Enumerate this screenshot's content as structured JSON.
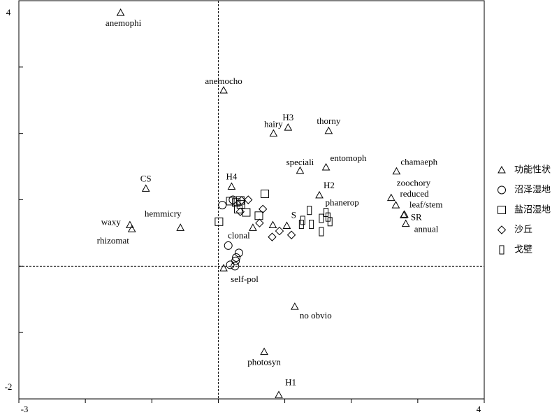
{
  "chart_data": {
    "type": "scatter",
    "xlim": [
      -3,
      4
    ],
    "ylim": [
      -2,
      4
    ],
    "xticks": [
      -3,
      -2,
      -1,
      0,
      1,
      2,
      3,
      4
    ],
    "yticks": [
      -2,
      -1,
      0,
      1,
      2,
      3,
      4
    ],
    "origin_lines": true,
    "series": [
      {
        "name": "功能性状",
        "marker": "triangle",
        "color": "#000000",
        "labels": [
          "anemophi",
          "anemocho",
          "H3",
          "hairy",
          "thorny",
          "speciali",
          "entomoph",
          "chamaeph",
          "CS",
          "H4",
          "H2",
          "zoochory",
          "reduced",
          "leaf/stem",
          "SR",
          "annual",
          "waxy",
          "rhizomat",
          "hemmicry",
          "clonal",
          "S",
          "phanerop",
          "self-pol",
          "no obvio",
          "photosyn",
          "H1"
        ],
        "x": [
          -1.47,
          0.08,
          1.05,
          0.83,
          1.66,
          1.23,
          1.62,
          2.68,
          -1.09,
          0.2,
          1.52,
          2.6,
          2.67,
          2.79,
          2.8,
          2.82,
          -1.33,
          -1.3,
          -0.57,
          0.52,
          1.03,
          0.82,
          0.08,
          1.15,
          0.69,
          0.91
        ],
        "y": [
          3.82,
          2.65,
          2.09,
          2.0,
          2.04,
          1.44,
          1.49,
          1.43,
          1.17,
          1.2,
          1.07,
          1.03,
          0.92,
          0.77,
          0.78,
          0.64,
          0.62,
          0.56,
          0.58,
          0.58,
          0.61,
          0.62,
          -0.03,
          -0.61,
          -1.29,
          -1.94
        ]
      },
      {
        "name": "沼泽湿地",
        "marker": "circle",
        "color": "#000000",
        "x": [
          0.06,
          0.22,
          0.15,
          0.31,
          0.27,
          0.26,
          0.18,
          0.25
        ],
        "y": [
          0.92,
          1.0,
          0.31,
          0.2,
          0.13,
          0.08,
          0.02,
          0.0
        ]
      },
      {
        "name": "盐沼湿地",
        "marker": "square",
        "color": "#000000",
        "x": [
          0.01,
          0.18,
          0.27,
          0.34,
          0.3,
          0.42,
          0.7,
          0.61,
          0.33
        ],
        "y": [
          0.67,
          0.98,
          0.96,
          0.93,
          0.86,
          0.81,
          1.09,
          0.76,
          0.99
        ]
      },
      {
        "name": "沙丘",
        "marker": "diamond",
        "color": "#000000",
        "x": [
          0.35,
          0.45,
          0.67,
          0.62,
          0.81,
          0.92,
          1.1,
          0.33
        ],
        "y": [
          0.99,
          1.0,
          0.86,
          0.65,
          0.44,
          0.53,
          0.47,
          0.82
        ]
      },
      {
        "name": "戈壁",
        "marker": "tallrect",
        "color": "#000000",
        "x": [
          1.25,
          1.27,
          1.37,
          1.4,
          1.55,
          1.55,
          1.62,
          1.65,
          1.68
        ],
        "y": [
          0.63,
          0.69,
          0.84,
          0.63,
          0.72,
          0.52,
          0.81,
          0.74,
          0.67
        ]
      }
    ]
  }
}
